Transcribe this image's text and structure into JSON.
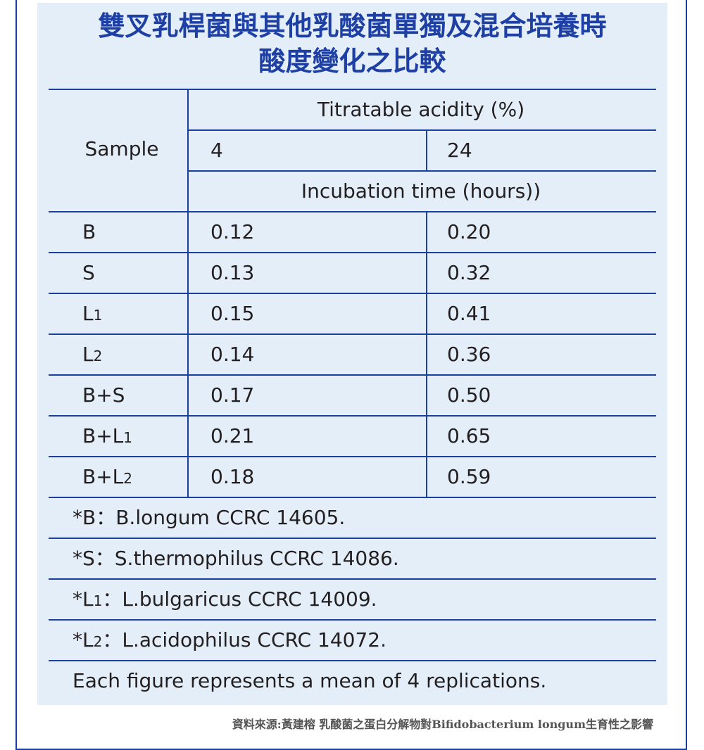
{
  "title_line1": "雙叉乳桿菌與其他乳酸菌單獨及混合培養時",
  "title_line2": "酸度變化之比較",
  "header": {
    "sample": "Sample",
    "measure": "Titratable acidity (%)",
    "time_4": "4",
    "time_24": "24",
    "time_label": "Incubation time (hours))"
  },
  "rows": [
    {
      "sample": "B",
      "h4": "0.12",
      "h24": "0.20"
    },
    {
      "sample": "S",
      "h4": "0.13",
      "h24": "0.32"
    },
    {
      "sample": "L1",
      "h4": "0.15",
      "h24": "0.41"
    },
    {
      "sample": "L2",
      "h4": "0.14",
      "h24": "0.36"
    },
    {
      "sample": "B+S",
      "h4": "0.17",
      "h24": "0.50"
    },
    {
      "sample": "B+L1",
      "h4": "0.21",
      "h24": "0.65"
    },
    {
      "sample": "B+L2",
      "h4": "0.18",
      "h24": "0.59"
    }
  ],
  "notes": [
    "*B：B.longum CCRC 14605.",
    "*S：S.thermophilus CCRC 14086.",
    "*L1：L.bulgaricus CCRC 14009.",
    "*L2：L.acidophilus CCRC 14072.",
    "Each figure represents a mean of 4 replications."
  ],
  "source": "資料來源:黃建榕 乳酸菌之蛋白分解物對Bifidobacterium longum生育性之影響",
  "colors": {
    "accent": "#1e3fa3",
    "panel": "#e3eef9",
    "rule": "#1a3f9c"
  },
  "chart_data": {
    "type": "table",
    "columns": [
      "Sample",
      "4",
      "24"
    ],
    "column_group": "Titratable acidity (%)",
    "column_axis_label": "Incubation time (hours))",
    "rows": [
      [
        "B",
        0.12,
        0.2
      ],
      [
        "S",
        0.13,
        0.32
      ],
      [
        "L1",
        0.15,
        0.41
      ],
      [
        "L2",
        0.14,
        0.36
      ],
      [
        "B+S",
        0.17,
        0.5
      ],
      [
        "B+L1",
        0.21,
        0.65
      ],
      [
        "B+L2",
        0.18,
        0.59
      ]
    ]
  }
}
